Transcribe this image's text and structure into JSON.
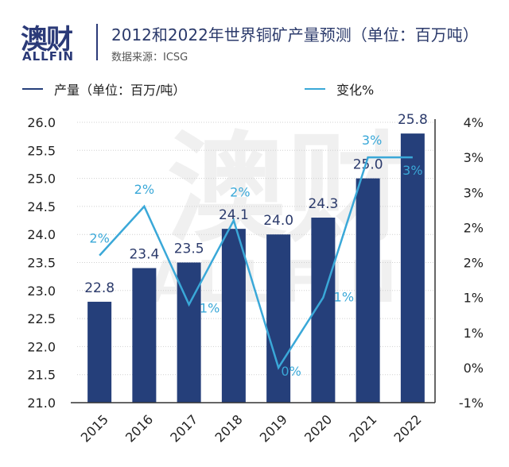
{
  "logo": {
    "cn": "澳财",
    "en": "ALLFIN"
  },
  "header": {
    "title": "2012和2022年世界铜矿产量预测（单位：百万吨）",
    "source": "数据来源：ICSG"
  },
  "legend": [
    {
      "label": "产量（单位：百万/吨）",
      "color": "#253f7a"
    },
    {
      "label": "变化%",
      "color": "#3aa8d8"
    }
  ],
  "watermark": {
    "cn": "澳财",
    "en": "ALLFIN"
  },
  "chart_data": {
    "type": "bar+line",
    "categories": [
      "2015",
      "2016",
      "2017",
      "2018",
      "2019",
      "2020",
      "2021",
      "2022"
    ],
    "series": [
      {
        "name": "产量（单位：百万/吨）",
        "type": "bar",
        "axis": "left",
        "color": "#253f7a",
        "values": [
          22.8,
          23.4,
          23.5,
          24.1,
          24.0,
          24.3,
          25.0,
          25.8
        ],
        "labels": [
          "22.8",
          "23.4",
          "23.5",
          "24.1",
          "24.0",
          "24.3",
          "25.0",
          "25.8"
        ]
      },
      {
        "name": "变化%",
        "type": "line",
        "axis": "right",
        "color": "#3aa8d8",
        "values": [
          1.6,
          2.3,
          0.9,
          2.1,
          0.0,
          1.0,
          3.0,
          3.0
        ],
        "labels": [
          "2%",
          "2%",
          "1%",
          "2%",
          "0%",
          "1%",
          "3%",
          "3%"
        ]
      }
    ],
    "left_axis": {
      "range": [
        21.0,
        26.0
      ],
      "ticks": [
        "26.0",
        "25.5",
        "25.0",
        "24.5",
        "24.0",
        "23.5",
        "23.0",
        "22.5",
        "22.0",
        "21.5",
        "21.0"
      ]
    },
    "right_axis": {
      "range": [
        -0.5,
        3.5
      ],
      "ticks": [
        "4%",
        "3%",
        "3%",
        "2%",
        "2%",
        "1%",
        "1%",
        "0%",
        "-1%"
      ]
    },
    "grid": true
  }
}
